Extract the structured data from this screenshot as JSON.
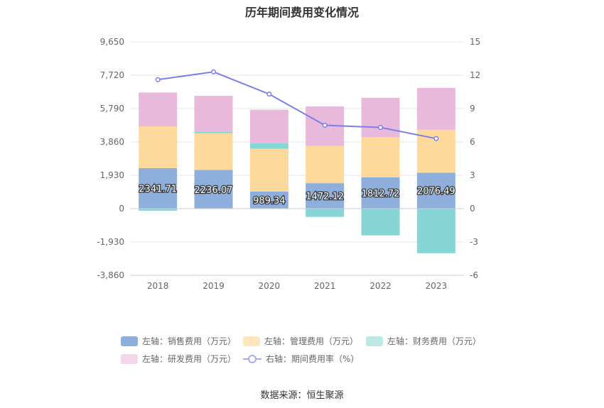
{
  "title": "历年期间费用变化情况",
  "source": "数据来源：恒生聚源",
  "chart_data": {
    "type": "bar",
    "stacked": true,
    "categories": [
      "2018",
      "2019",
      "2020",
      "2021",
      "2022",
      "2023"
    ],
    "left_axis": {
      "min": -3860,
      "max": 9650,
      "ticks": [
        "9,650",
        "7,720",
        "5,790",
        "3,860",
        "1,930",
        "0",
        "-1,930",
        "-3,860"
      ],
      "tick_values": [
        9650,
        7720,
        5790,
        3860,
        1930,
        0,
        -1930,
        -3860
      ]
    },
    "right_axis": {
      "min": -6,
      "max": 15,
      "ticks": [
        "15",
        "12",
        "9",
        "6",
        "3",
        "0",
        "-3",
        "-6"
      ],
      "tick_values": [
        15,
        12,
        9,
        6,
        3,
        0,
        -3,
        -6
      ]
    },
    "series": [
      {
        "name": "左轴：销售费用（万元）",
        "axis": "left",
        "color": "#8eaedb",
        "values": [
          2341.71,
          2236.07,
          989.34,
          1472.12,
          1812.72,
          2076.49
        ],
        "labels": [
          "2341.71",
          "2236.07",
          "989.34",
          "1472.12",
          "1812.72",
          "2076.49"
        ]
      },
      {
        "name": "左轴：管理费用（万元）",
        "axis": "left",
        "color": "#fdd99b",
        "values": [
          2420,
          2130,
          2480,
          2160,
          2320,
          2490
        ]
      },
      {
        "name": "左轴：财务费用（万元）",
        "axis": "left",
        "color": "#86d6d6",
        "values": [
          -120,
          80,
          320,
          -480,
          -1550,
          -2580
        ]
      },
      {
        "name": "左轴：研发费用（万元）",
        "axis": "left",
        "color": "#e8b9da",
        "values": [
          1960,
          2080,
          1930,
          2280,
          2280,
          2420
        ]
      },
      {
        "name": "右轴：期间费用率（%）",
        "axis": "right",
        "type": "line",
        "color": "#7b7fe8",
        "values": [
          11.6,
          12.3,
          10.3,
          7.5,
          7.3,
          6.3
        ]
      }
    ],
    "legend_placement": "bottom",
    "grid": true
  }
}
